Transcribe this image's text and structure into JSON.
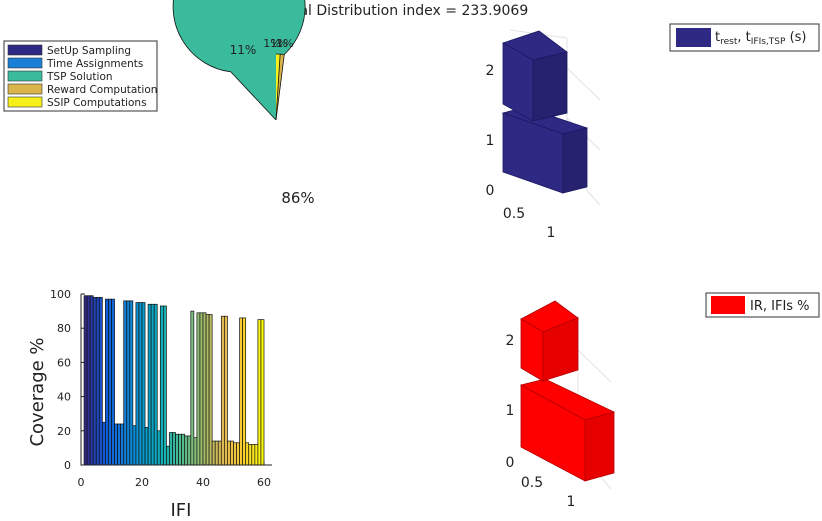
{
  "figure": {
    "title": "Spatial Distribution index = 233.9069"
  },
  "chart_data": [
    {
      "type": "pie",
      "legend_position": "top-left",
      "labels": [
        "SetUp Sampling",
        "Time Assignments",
        "TSP Solution",
        "Reward Computation",
        "SSIP Computations"
      ],
      "values": [
        1,
        11,
        86,
        1,
        1
      ],
      "slice_labels": [
        "1%",
        "11%",
        "86%",
        "1%",
        "1%"
      ],
      "colors": [
        "#2e2a84",
        "#1a7fd6",
        "#39bb9c",
        "#d9b54a",
        "#f5ef1a"
      ]
    },
    {
      "type": "bar",
      "subtype": "3d-stacked",
      "legend_position": "top-right",
      "legend": [
        "t_rest, t_IFIs,TSP (s)"
      ],
      "legend_parts": {
        "main": "t",
        "sub1": "rest",
        "sep": ", t",
        "sub2": "IFIs,TSP",
        "unit": " (s)"
      },
      "color": "#2e2a84",
      "z_ticks": [
        "0",
        "1",
        "2"
      ],
      "x_ticks": [
        "0.5",
        "1"
      ],
      "values": [
        1.0,
        1.0
      ]
    },
    {
      "type": "bar",
      "xlabel": "IFI",
      "ylabel": "Coverage %",
      "xlim": [
        0,
        63
      ],
      "ylim": [
        0,
        100
      ],
      "x_ticks": [
        "0",
        "20",
        "40",
        "60"
      ],
      "y_ticks": [
        "0",
        "20",
        "40",
        "60",
        "80",
        "100"
      ],
      "colormap": "parula",
      "bars": [
        {
          "x": 1,
          "y": 99
        },
        {
          "x": 2,
          "y": 99
        },
        {
          "x": 3,
          "y": 99
        },
        {
          "x": 4,
          "y": 98
        },
        {
          "x": 5,
          "y": 98
        },
        {
          "x": 6,
          "y": 98
        },
        {
          "x": 7,
          "y": 25
        },
        {
          "x": 8,
          "y": 97
        },
        {
          "x": 9,
          "y": 97
        },
        {
          "x": 10,
          "y": 97
        },
        {
          "x": 11,
          "y": 24
        },
        {
          "x": 12,
          "y": 24
        },
        {
          "x": 13,
          "y": 24
        },
        {
          "x": 14,
          "y": 96
        },
        {
          "x": 15,
          "y": 96
        },
        {
          "x": 16,
          "y": 96
        },
        {
          "x": 17,
          "y": 23
        },
        {
          "x": 18,
          "y": 95
        },
        {
          "x": 19,
          "y": 95
        },
        {
          "x": 20,
          "y": 95
        },
        {
          "x": 21,
          "y": 22
        },
        {
          "x": 22,
          "y": 94
        },
        {
          "x": 23,
          "y": 94
        },
        {
          "x": 24,
          "y": 94
        },
        {
          "x": 25,
          "y": 20
        },
        {
          "x": 26,
          "y": 93
        },
        {
          "x": 27,
          "y": 93
        },
        {
          "x": 28,
          "y": 11
        },
        {
          "x": 29,
          "y": 19
        },
        {
          "x": 30,
          "y": 19
        },
        {
          "x": 31,
          "y": 18
        },
        {
          "x": 32,
          "y": 18
        },
        {
          "x": 33,
          "y": 18
        },
        {
          "x": 34,
          "y": 17
        },
        {
          "x": 35,
          "y": 17
        },
        {
          "x": 36,
          "y": 90
        },
        {
          "x": 37,
          "y": 16
        },
        {
          "x": 38,
          "y": 89
        },
        {
          "x": 39,
          "y": 89
        },
        {
          "x": 40,
          "y": 89
        },
        {
          "x": 41,
          "y": 88
        },
        {
          "x": 42,
          "y": 88
        },
        {
          "x": 43,
          "y": 14
        },
        {
          "x": 44,
          "y": 14
        },
        {
          "x": 45,
          "y": 14
        },
        {
          "x": 46,
          "y": 87
        },
        {
          "x": 47,
          "y": 87
        },
        {
          "x": 48,
          "y": 14
        },
        {
          "x": 49,
          "y": 14
        },
        {
          "x": 50,
          "y": 13
        },
        {
          "x": 51,
          "y": 13
        },
        {
          "x": 52,
          "y": 86
        },
        {
          "x": 53,
          "y": 86
        },
        {
          "x": 54,
          "y": 13
        },
        {
          "x": 55,
          "y": 12
        },
        {
          "x": 56,
          "y": 12
        },
        {
          "x": 57,
          "y": 12
        },
        {
          "x": 58,
          "y": 85
        },
        {
          "x": 59,
          "y": 85
        }
      ]
    },
    {
      "type": "bar",
      "subtype": "3d-stacked",
      "legend_position": "top-right",
      "legend": [
        "IR, IFIs %"
      ],
      "color": "#ff0000",
      "z_ticks": [
        "0",
        "1",
        "2"
      ],
      "x_ticks": [
        "0.5",
        "1"
      ],
      "values": [
        1.0,
        1.0
      ]
    }
  ]
}
